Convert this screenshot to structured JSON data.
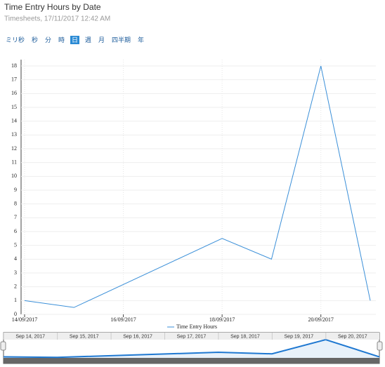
{
  "chart_data": {
    "type": "line",
    "title": "Time Entry Hours by Date",
    "subtitle": "Timesheets, 17/11/2017 12:42 AM",
    "range_buttons": [
      "ミリ秒",
      "秒",
      "分",
      "時",
      "日",
      "週",
      "月",
      "四半期",
      "年"
    ],
    "selected_button": 4,
    "x": [
      "14/09/2017",
      "15/09/2017",
      "18/09/2017",
      "19/09/2017",
      "20/09/2017",
      "21/09/2017"
    ],
    "series": [
      {
        "name": "Time Entry Hours",
        "color": "#3a8fd8",
        "values": [
          1,
          0.5,
          5.5,
          4,
          18,
          1
        ]
      }
    ],
    "xlim": [
      "14/09/2017",
      "21/09/2017"
    ],
    "xticks": [
      "14/09/2017",
      "16/09/2017",
      "18/09/2017",
      "20/09/2017"
    ],
    "ylim": [
      0,
      18
    ],
    "yticks": [
      0,
      1,
      2,
      3,
      4,
      5,
      6,
      7,
      8,
      9,
      10,
      11,
      12,
      13,
      14,
      15,
      16,
      17,
      18
    ],
    "grid": true,
    "legend": "bottom",
    "navigator_labels": [
      "Sep 14, 2017",
      "Sep 15, 2017",
      "Sep 16, 2017",
      "Sep 17, 2017",
      "Sep 18, 2017",
      "Sep 19, 2017",
      "Sep 20, 2017"
    ]
  }
}
